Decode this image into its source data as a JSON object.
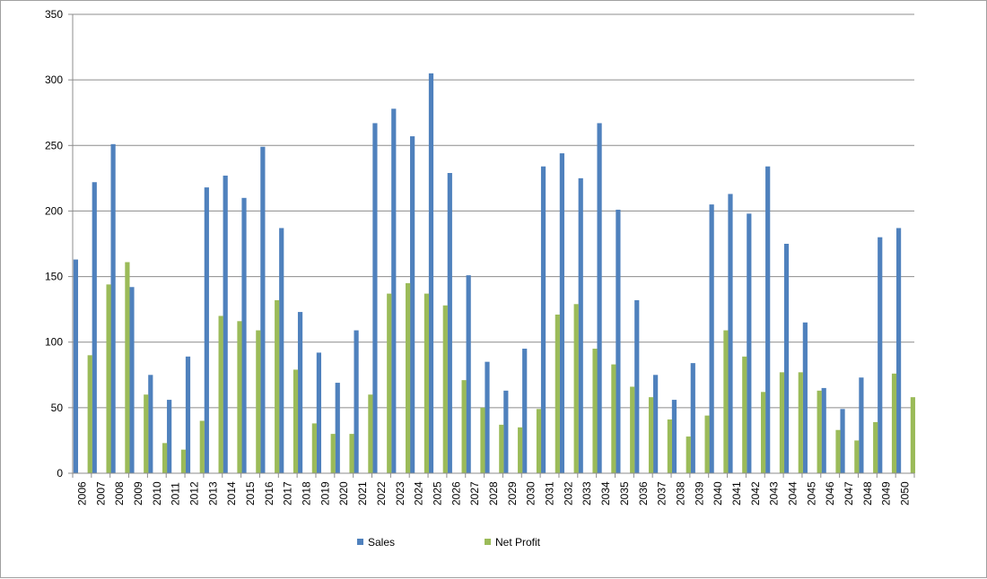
{
  "chart_data": {
    "type": "bar",
    "title": "",
    "xlabel": "",
    "ylabel": "",
    "ylim": [
      0,
      350
    ],
    "yticks": [
      0,
      50,
      100,
      150,
      200,
      250,
      300,
      350
    ],
    "grid": "horizontal",
    "legend_position": "bottom",
    "categories": [
      "2006",
      "2007",
      "2008",
      "2009",
      "2010",
      "2011",
      "2012",
      "2013",
      "2014",
      "2015",
      "2016",
      "2017",
      "2018",
      "2019",
      "2020",
      "2021",
      "2022",
      "2023",
      "2024",
      "2025",
      "2026",
      "2027",
      "2028",
      "2029",
      "2030",
      "2031",
      "2032",
      "2033",
      "2034",
      "2035",
      "2036",
      "2037",
      "2038",
      "2039",
      "2040",
      "2041",
      "2042",
      "2043",
      "2044",
      "2045",
      "2046",
      "2047",
      "2048",
      "2049",
      "2050"
    ],
    "series": [
      {
        "name": "Sales",
        "color": "#4F81BD",
        "values": [
          163,
          222,
          251,
          142,
          75,
          56,
          89,
          218,
          227,
          210,
          249,
          187,
          123,
          92,
          69,
          109,
          267,
          278,
          257,
          305,
          229,
          151,
          85,
          63,
          95,
          234,
          244,
          225,
          267,
          201,
          132,
          75,
          56,
          84,
          205,
          213,
          198,
          234,
          175,
          115,
          65,
          49,
          73,
          180,
          187
        ]
      },
      {
        "name": "Net Profit",
        "color": "#9BBB59",
        "values": [
          90,
          144,
          161,
          60,
          23,
          18,
          40,
          120,
          116,
          109,
          132,
          79,
          38,
          30,
          30,
          60,
          137,
          145,
          137,
          128,
          71,
          50,
          37,
          35,
          49,
          121,
          129,
          95,
          83,
          66,
          58,
          41,
          28,
          44,
          109,
          89,
          62,
          77,
          77,
          63,
          33,
          25,
          39,
          76,
          58
        ]
      }
    ]
  }
}
